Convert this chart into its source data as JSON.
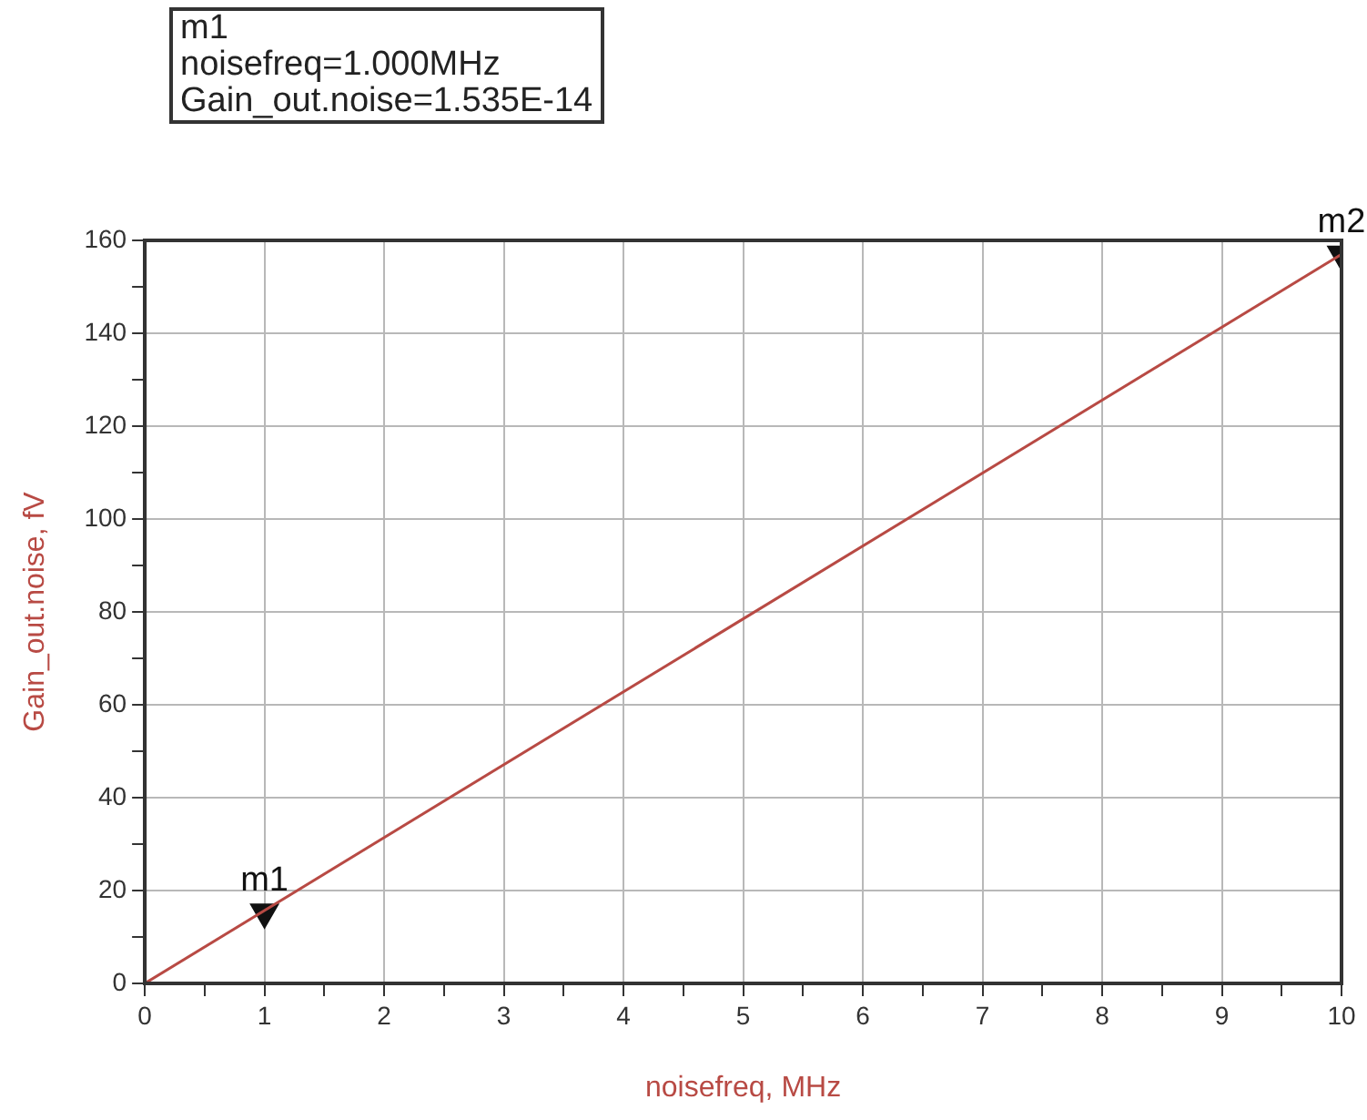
{
  "chart_data": {
    "type": "line",
    "xlabel": "noisefreq, MHz",
    "ylabel": "Gain_out.noise, fV",
    "x": [
      0,
      10
    ],
    "series": [
      {
        "color": "#b84a44",
        "values": [
          0,
          157
        ]
      },
      {
        "type": "scatter",
        "color": "#111111",
        "marker": "triangle",
        "x": [
          1,
          10
        ],
        "values": [
          15.35,
          157
        ]
      }
    ],
    "xlim": [
      0,
      10
    ],
    "ylim": [
      0,
      160
    ],
    "xticks": [
      0,
      {
        "value": 0.5,
        "label": null
      },
      1,
      {
        "value": 1.5,
        "label": null
      },
      2,
      {
        "value": 2.5,
        "label": null
      },
      3,
      {
        "value": 3.5,
        "label": null
      },
      4,
      {
        "value": 4.5,
        "label": null
      },
      5,
      {
        "value": 5.5,
        "label": null
      },
      6,
      {
        "value": 6.5,
        "label": null
      },
      7,
      {
        "value": 7.5,
        "label": null
      },
      8,
      {
        "value": 8.5,
        "label": null
      },
      9,
      {
        "value": 9.5,
        "label": null
      },
      10
    ],
    "yticks": [
      0,
      {
        "value": 10,
        "label": null
      },
      20,
      {
        "value": 30,
        "label": null
      },
      40,
      {
        "value": 50,
        "label": null
      },
      60,
      {
        "value": 70,
        "label": null
      },
      80,
      {
        "value": 90,
        "label": null
      },
      100,
      {
        "value": 110,
        "label": null
      },
      120,
      {
        "value": 130,
        "label": null
      },
      140,
      {
        "value": 150,
        "label": null
      },
      160
    ],
    "grid": true,
    "legend": false,
    "marker": "none",
    "line_style": "solid",
    "annotations": [
      "m1\nnoisefreq=1.000MHz\nGain_out.noise=1.535E-14",
      {
        "text": "m1",
        "x": 1,
        "y": 15.35
      },
      {
        "text": "m2",
        "x": 10,
        "y": 157
      }
    ]
  }
}
